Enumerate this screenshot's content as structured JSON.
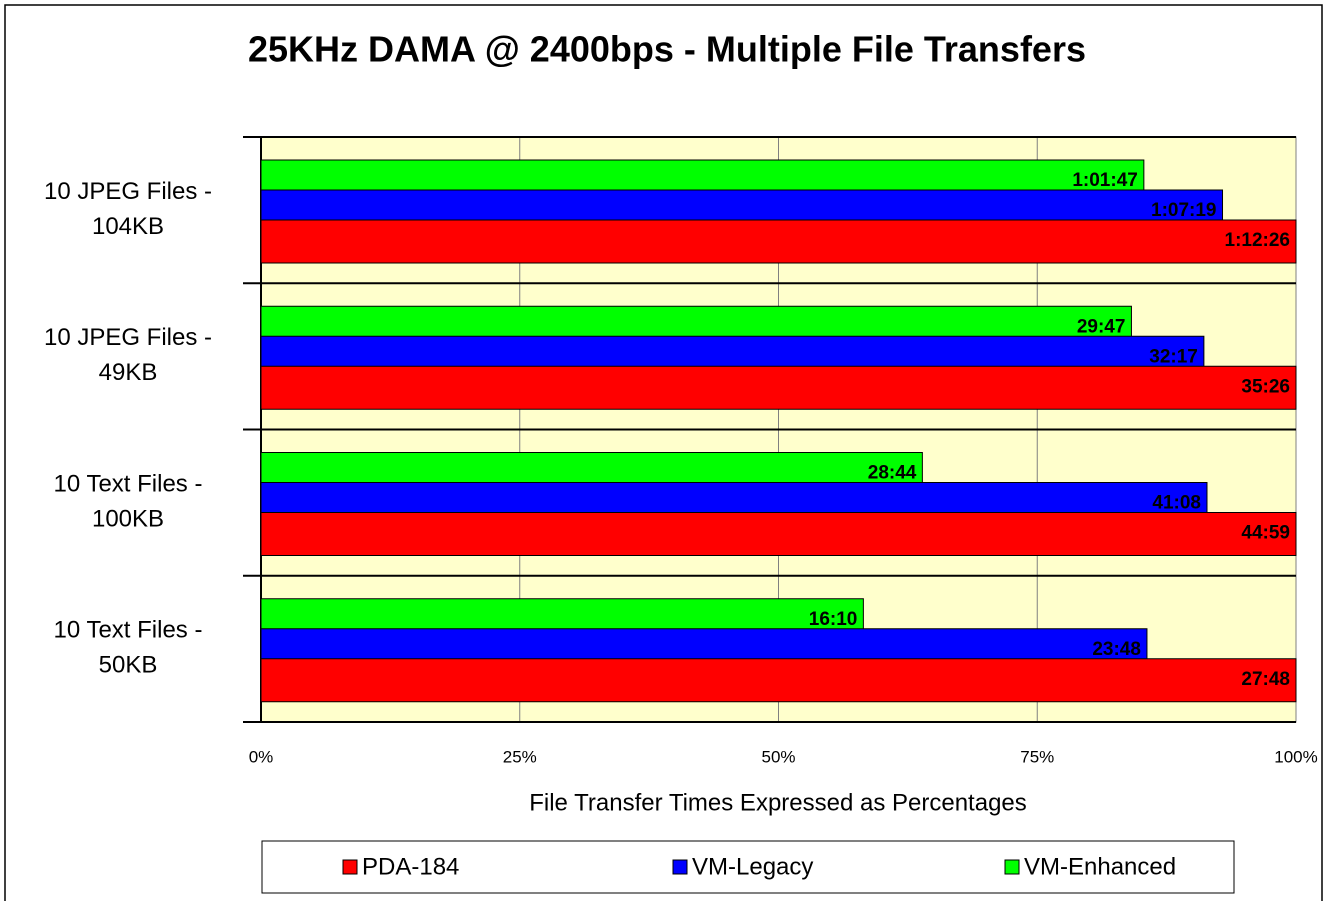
{
  "chart_data": {
    "type": "bar",
    "orientation": "horizontal",
    "title": "25KHz DAMA @ 2400bps - Multiple File Transfers",
    "x_label": "File Transfer Times Expressed as Percentages",
    "categories": [
      [
        "10 JPEG Files -",
        "104KB"
      ],
      [
        "10 JPEG Files -",
        "49KB"
      ],
      [
        "10 Text Files -",
        "100KB"
      ],
      [
        "10 Text Files -",
        "50KB"
      ]
    ],
    "series": [
      {
        "name": "PDA-184",
        "color": "#ff0000",
        "values": [
          100,
          100,
          100,
          100
        ],
        "value_labels": [
          "1:12:26",
          "35:26",
          "44:59",
          "27:48"
        ]
      },
      {
        "name": "VM-Legacy",
        "color": "#0000ff",
        "values": [
          92.9,
          91.1,
          91.4,
          85.6
        ],
        "value_labels": [
          "1:07:19",
          "32:17",
          "41:08",
          "23:48"
        ]
      },
      {
        "name": "VM-Enhanced",
        "color": "#00ff00",
        "values": [
          85.3,
          84.1,
          63.9,
          58.2
        ],
        "value_labels": [
          "1:01:47",
          "29:47",
          "28:44",
          "16:10"
        ]
      }
    ],
    "xlim": [
      0,
      100
    ],
    "xticks": [
      {
        "value": 0,
        "label": "0%"
      },
      {
        "value": 25,
        "label": "25%"
      },
      {
        "value": 50,
        "label": "50%"
      },
      {
        "value": 75,
        "label": "75%"
      },
      {
        "value": 100,
        "label": "100%"
      }
    ],
    "grid": true,
    "legend": "bottom"
  }
}
